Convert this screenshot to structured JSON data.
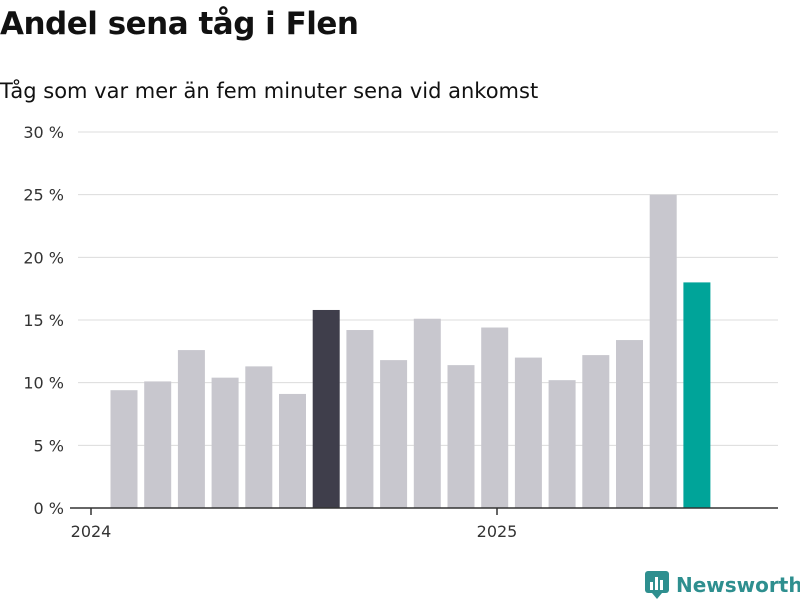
{
  "title": "Andel sena tåg i Flen",
  "subtitle": "Tåg som var mer än fem minuter sena vid ankomst",
  "brand": {
    "name": "Newsworthy"
  },
  "colors": {
    "bar_default": "#c8c7ce",
    "bar_highlight_dark": "#3f3e4b",
    "bar_highlight_teal": "#00a499",
    "gridline": "#dcdcdc",
    "axis": "#333333",
    "brand": "#2e8f8f"
  },
  "chart_data": {
    "type": "bar",
    "title": "",
    "xlabel": "",
    "ylabel": "",
    "ylim": [
      0,
      30
    ],
    "yticks": [
      0,
      5,
      10,
      15,
      20,
      25,
      30
    ],
    "ytick_labels": [
      "0 %",
      "5 %",
      "10 %",
      "15 %",
      "20 %",
      "25 %",
      "30 %"
    ],
    "x_tick_labels": [
      {
        "label": "2024",
        "category_index": 0
      },
      {
        "label": "2025",
        "category_index": 12
      }
    ],
    "grid": true,
    "categories": [
      "2024-01",
      "2024-02",
      "2024-03",
      "2024-04",
      "2024-05",
      "2024-06",
      "2024-07",
      "2024-08",
      "2024-09",
      "2024-10",
      "2024-11",
      "2024-12",
      "2025-01",
      "2025-02",
      "2025-03",
      "2025-04",
      "2025-05",
      "2025-06"
    ],
    "values": [
      9.4,
      10.1,
      12.6,
      10.4,
      11.3,
      9.1,
      15.8,
      14.2,
      11.8,
      15.1,
      11.4,
      14.4,
      12.0,
      10.2,
      12.2,
      13.4,
      25.0,
      18.0
    ],
    "highlights": [
      {
        "category_index": 6,
        "color": "dark"
      },
      {
        "category_index": 17,
        "color": "teal"
      }
    ]
  }
}
